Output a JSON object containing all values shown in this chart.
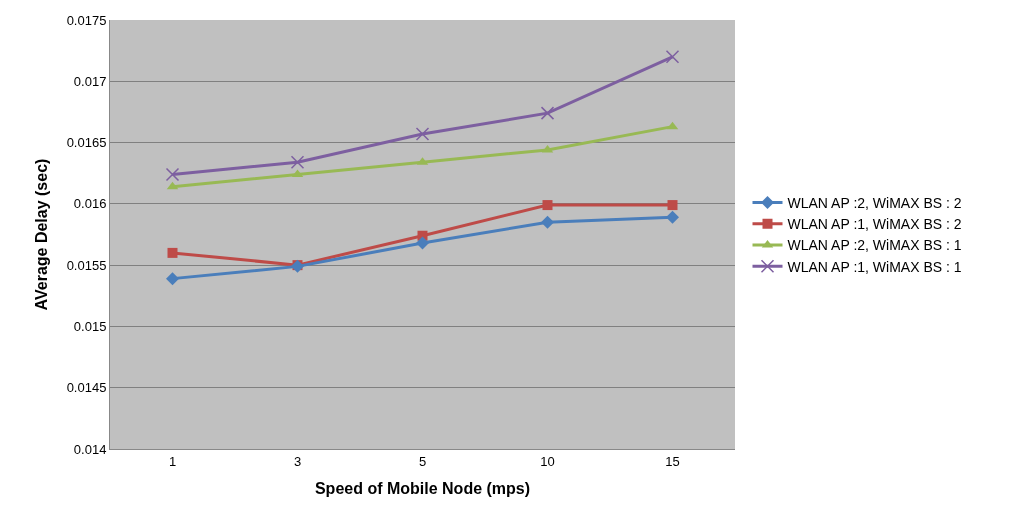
{
  "chart_data": {
    "type": "line",
    "xlabel": "Speed of Mobile Node (mps)",
    "ylabel": "AVerage Delay (sec)",
    "categories": [
      "1",
      "3",
      "5",
      "10",
      "15"
    ],
    "ylim": [
      0.014,
      0.0175
    ],
    "yticks": [
      0.014,
      0.0145,
      0.015,
      0.0155,
      0.016,
      0.0165,
      0.017,
      0.0175
    ],
    "grid": "y",
    "legend": "right",
    "series": [
      {
        "name": "WLAN AP :2, WiMAX BS : 2",
        "color": "#4a7ebb",
        "marker": "diamond",
        "values": [
          0.01539,
          0.01549,
          0.01568,
          0.01585,
          0.01589
        ]
      },
      {
        "name": "WLAN AP :1, WiMAX BS : 2",
        "color": "#be4b48",
        "marker": "square",
        "values": [
          0.0156,
          0.0155,
          0.01574,
          0.01599,
          0.01599
        ]
      },
      {
        "name": "WLAN AP :2, WiMAX BS : 1",
        "color": "#98b954",
        "marker": "triangle",
        "values": [
          0.01614,
          0.01624,
          0.01634,
          0.01644,
          0.01663
        ]
      },
      {
        "name": "WLAN AP :1, WiMAX BS : 1",
        "color": "#7d5fa0",
        "marker": "cross",
        "values": [
          0.01624,
          0.01634,
          0.01657,
          0.01674,
          0.0172
        ]
      }
    ]
  }
}
